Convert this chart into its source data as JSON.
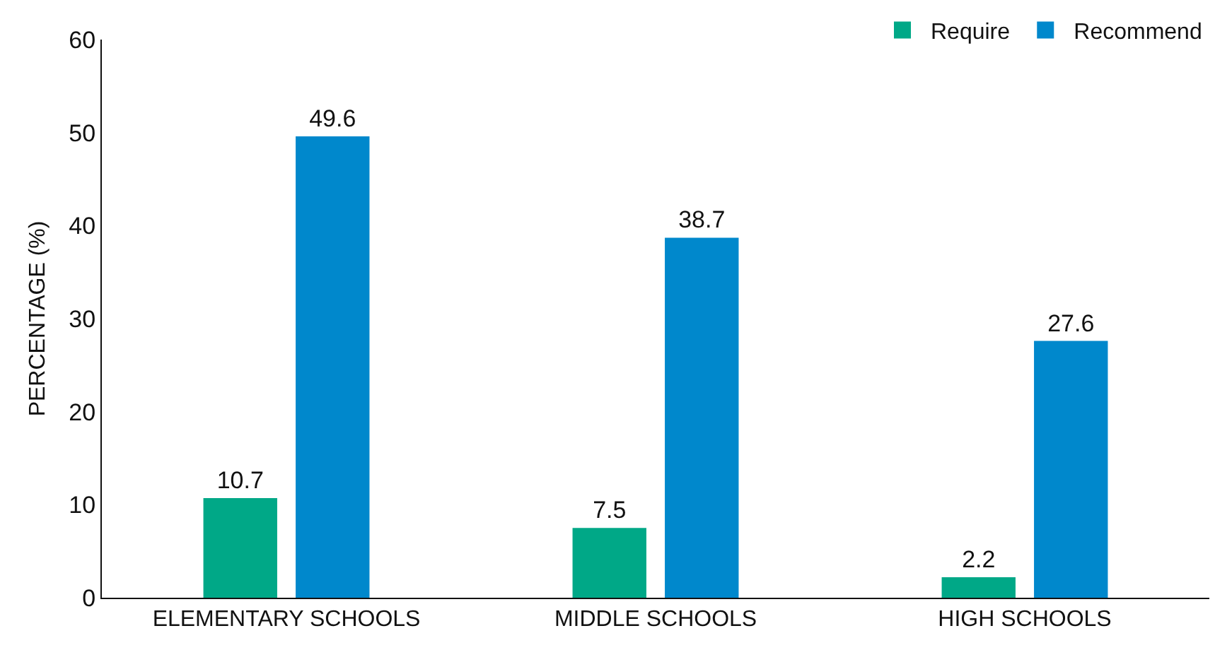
{
  "chart_data": {
    "type": "bar",
    "ylabel": "PERCENTAGE (%)",
    "categories": [
      "ELEMENTARY SCHOOLS",
      "MIDDLE SCHOOLS",
      "HIGH SCHOOLS"
    ],
    "series": [
      {
        "name": "Require",
        "color": "#00a887",
        "values": [
          10.7,
          7.5,
          2.2
        ]
      },
      {
        "name": "Recommend",
        "color": "#0088cc",
        "values": [
          49.6,
          38.7,
          27.6
        ]
      }
    ],
    "ylim": [
      0,
      60
    ],
    "yticks": [
      0,
      10,
      20,
      30,
      40,
      50,
      60
    ],
    "grid": false,
    "legend": "top right",
    "data_labels": true
  }
}
